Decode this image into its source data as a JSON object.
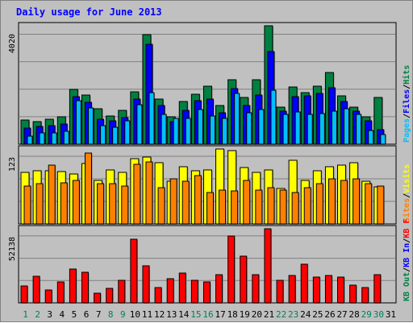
{
  "title": "Daily usage for June 2013",
  "colors": {
    "background": "#c0c0c0",
    "hits": "#008040",
    "files": "#0000ff",
    "pages": "#00c0ff",
    "visits": "#ffff00",
    "sites": "#ff8000",
    "kbytes": "#ff0000",
    "kb_in": "#0000ff",
    "kb_out": "#008040",
    "day_weekday": "#000000",
    "day_weekend": "#00805c"
  },
  "chart_data": [
    {
      "type": "bar",
      "name": "hits-files-pages",
      "ymax_label": "4020",
      "ymax": 4020,
      "legend": [
        {
          "label": "Hits",
          "color": "#008040"
        },
        {
          "label": "/",
          "color": "#000000"
        },
        {
          "label": "Files",
          "color": "#0000ff"
        },
        {
          "label": "/",
          "color": "#000000"
        },
        {
          "label": "Pages",
          "color": "#00c0ff"
        }
      ],
      "series": [
        {
          "name": "Hits",
          "values": [
            820,
            760,
            860,
            930,
            1860,
            1660,
            1200,
            960,
            1140,
            1780,
            3720,
            1540,
            940,
            1440,
            1700,
            1980,
            1320,
            2200,
            1580,
            2200,
            4020,
            1260,
            1940,
            1760,
            1960,
            2430,
            1640,
            1270,
            920,
            1580,
            0
          ]
        },
        {
          "name": "Files",
          "values": [
            560,
            610,
            620,
            680,
            1600,
            1420,
            860,
            780,
            900,
            1520,
            3400,
            1300,
            760,
            1150,
            1490,
            1520,
            1060,
            1900,
            1300,
            1660,
            3140,
            1120,
            1600,
            1640,
            1720,
            1920,
            1460,
            1120,
            780,
            480,
            0
          ]
        },
        {
          "name": "Pages",
          "values": [
            280,
            380,
            380,
            440,
            1470,
            1240,
            640,
            570,
            780,
            1340,
            1750,
            1010,
            870,
            880,
            1180,
            950,
            870,
            1720,
            1080,
            1180,
            1840,
            1020,
            1100,
            1000,
            1040,
            1110,
            1200,
            1000,
            460,
            320,
            0
          ]
        }
      ]
    },
    {
      "type": "bar",
      "name": "visits-sites",
      "ymax_label": "123",
      "ymax": 123,
      "legend": [
        {
          "label": "Visits",
          "color": "#ffff00"
        },
        {
          "label": "/",
          "color": "#000000"
        },
        {
          "label": "Sites",
          "color": "#ff8000"
        }
      ],
      "series": [
        {
          "name": "Visits",
          "values": [
            84,
            87,
            87,
            86,
            82,
            99,
            72,
            88,
            84,
            107,
            110,
            101,
            70,
            94,
            87,
            89,
            123,
            121,
            92,
            85,
            88,
            58,
            104,
            72,
            87,
            94,
            97,
            101,
            70,
            61,
            0
          ]
        },
        {
          "name": "Sites",
          "values": [
            62,
            66,
            97,
            68,
            72,
            116,
            66,
            66,
            62,
            98,
            102,
            60,
            74,
            70,
            80,
            51,
            55,
            54,
            72,
            56,
            60,
            56,
            52,
            60,
            66,
            74,
            72,
            74,
            66,
            62,
            0
          ]
        }
      ]
    },
    {
      "type": "bar",
      "name": "kbytes",
      "ymax_label": "52138",
      "ymax": 52138,
      "legend": [
        {
          "label": "KB F",
          "color": "#ff0000"
        },
        {
          "label": "/",
          "color": "#000000"
        },
        {
          "label": "KB In",
          "color": "#0000ff"
        },
        {
          "label": "/",
          "color": "#000000"
        },
        {
          "label": "KB Out",
          "color": "#008040"
        }
      ],
      "series": [
        {
          "name": "KB F",
          "values": [
            12000,
            18500,
            8800,
            14500,
            24000,
            21500,
            7000,
            10200,
            16000,
            45000,
            25800,
            11000,
            17000,
            21000,
            15600,
            15000,
            20000,
            47000,
            33000,
            20000,
            52138,
            16000,
            19000,
            27000,
            18000,
            19000,
            18000,
            12500,
            11000,
            20000,
            0
          ]
        }
      ]
    }
  ],
  "days": [
    {
      "label": "1",
      "weekend": true
    },
    {
      "label": "2",
      "weekend": true
    },
    {
      "label": "3",
      "weekend": false
    },
    {
      "label": "4",
      "weekend": false
    },
    {
      "label": "5",
      "weekend": false
    },
    {
      "label": "6",
      "weekend": false
    },
    {
      "label": "7",
      "weekend": false
    },
    {
      "label": "8",
      "weekend": true
    },
    {
      "label": "9",
      "weekend": true
    },
    {
      "label": "10",
      "weekend": false
    },
    {
      "label": "11",
      "weekend": false
    },
    {
      "label": "12",
      "weekend": false
    },
    {
      "label": "13",
      "weekend": false
    },
    {
      "label": "14",
      "weekend": false
    },
    {
      "label": "15",
      "weekend": true
    },
    {
      "label": "16",
      "weekend": true
    },
    {
      "label": "17",
      "weekend": false
    },
    {
      "label": "18",
      "weekend": false
    },
    {
      "label": "19",
      "weekend": false
    },
    {
      "label": "20",
      "weekend": false
    },
    {
      "label": "21",
      "weekend": false
    },
    {
      "label": "22",
      "weekend": true
    },
    {
      "label": "23",
      "weekend": true
    },
    {
      "label": "24",
      "weekend": false
    },
    {
      "label": "25",
      "weekend": false
    },
    {
      "label": "26",
      "weekend": false
    },
    {
      "label": "27",
      "weekend": false
    },
    {
      "label": "28",
      "weekend": false
    },
    {
      "label": "29",
      "weekend": true
    },
    {
      "label": "30",
      "weekend": true
    },
    {
      "label": "31",
      "weekend": false
    }
  ]
}
